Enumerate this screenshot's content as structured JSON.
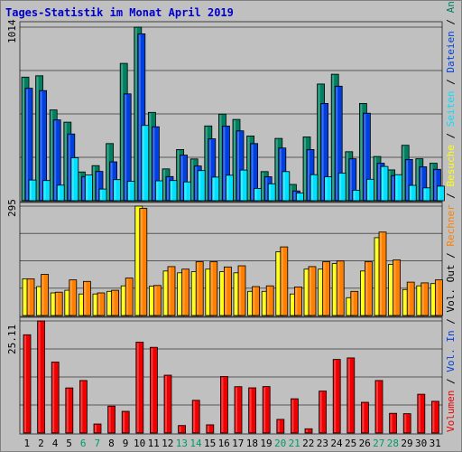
{
  "chart_data": {
    "type": "bar",
    "title": "Tages-Statistik im Monat April 2019",
    "categories": [
      "1",
      "2",
      "4",
      "5",
      "6",
      "7",
      "8",
      "9",
      "10",
      "11",
      "12",
      "13",
      "14",
      "15",
      "16",
      "17",
      "18",
      "19",
      "20",
      "21",
      "22",
      "23",
      "24",
      "25",
      "26",
      "27",
      "28",
      "29",
      "30",
      "31"
    ],
    "weekend_categories": [
      "6",
      "7",
      "13",
      "14",
      "20",
      "21",
      "27",
      "28"
    ],
    "panels": [
      {
        "name": "top",
        "axis_max_label": "1014",
        "ylim": [
          0,
          1014
        ],
        "series": [
          {
            "name": "Anfragen",
            "color": "#008060",
            "values": [
              722,
              730,
              530,
              459,
              168,
              205,
              334,
              802,
              1014,
              516,
              186,
              299,
              244,
              437,
              506,
              475,
              378,
              170,
              364,
              95,
              373,
              682,
              739,
              286,
              568,
              258,
              180,
              324,
              245,
              219
            ]
          },
          {
            "name": "Dateien",
            "color": "#0040e0",
            "values": [
              657,
              643,
              472,
              390,
              141,
              171,
              227,
              624,
              975,
              432,
              141,
              266,
              203,
              362,
              436,
              408,
              334,
              140,
              308,
              57,
              299,
              568,
              669,
              245,
              511,
              219,
              147,
              241,
              198,
              183
            ]
          },
          {
            "name": "Seiten",
            "color": "#00e0ff",
            "values": [
              121,
              118,
              91,
              251,
              150,
              68,
              123,
              113,
              440,
              116,
              118,
              110,
              176,
              138,
              149,
              179,
              72,
              99,
              170,
              45,
              152,
              140,
              161,
              61,
              125,
              200,
              152,
              90,
              75,
              85
            ]
          }
        ]
      },
      {
        "name": "middle",
        "axis_max_label": "295",
        "ylim": [
          0,
          295
        ],
        "series": [
          {
            "name": "Besuche",
            "color": "#ffff00",
            "values": [
              99,
              78,
              61,
              68,
              58,
              58,
              65,
              80,
              295,
              79,
              120,
              115,
              118,
              125,
              118,
              115,
              65,
              65,
              172,
              58,
              125,
              125,
              140,
              48,
              120,
              210,
              138,
              70,
              80,
              86
            ]
          },
          {
            "name": "Rechner",
            "color": "#ff8000",
            "values": [
              99,
              111,
              63,
              96,
              92,
              61,
              68,
              101,
              289,
              81,
              132,
              125,
              145,
              145,
              131,
              134,
              78,
              80,
              185,
              77,
              132,
              145,
              147,
              65,
              145,
              225,
              150,
              90,
              88,
              96
            ]
          }
        ]
      },
      {
        "name": "bottom",
        "axis_max_label": "25.11",
        "ylim": [
          0,
          25.11
        ],
        "series": [
          {
            "name": "Volumen",
            "color": "#ee0000",
            "values": [
              22.02,
              25.11,
              15.89,
              10.11,
              11.77,
              2.02,
              6.03,
              4.86,
              20.35,
              19.19,
              12.96,
              1.68,
              7.33,
              1.84,
              12.66,
              10.38,
              10.13,
              10.41,
              3.06,
              7.68,
              0.95,
              9.39,
              16.49,
              16.83,
              6.88,
              11.76,
              4.42,
              4.34,
              8.69,
              7.11
            ]
          }
        ]
      }
    ],
    "legend_right": [
      {
        "label": "Volumen",
        "color": "#ee0000"
      },
      {
        "label": "/",
        "color": "#000000"
      },
      {
        "label": "Vol. In",
        "color": "#0040e0"
      },
      {
        "label": "/",
        "color": "#000000"
      },
      {
        "label": "Vol. Out",
        "color": "#000000"
      },
      {
        "label": "/",
        "color": "#000000"
      },
      {
        "label": "Rechner",
        "color": "#ff8000"
      },
      {
        "label": "/",
        "color": "#000000"
      },
      {
        "label": "Besuche",
        "color": "#ffff00"
      },
      {
        "label": "/",
        "color": "#000000"
      },
      {
        "label": "Seiten",
        "color": "#00e0ff"
      },
      {
        "label": "/",
        "color": "#000000"
      },
      {
        "label": "Dateien",
        "color": "#0040e0"
      },
      {
        "label": "/",
        "color": "#000000"
      },
      {
        "label": "Anfragen",
        "color": "#008060"
      }
    ]
  }
}
